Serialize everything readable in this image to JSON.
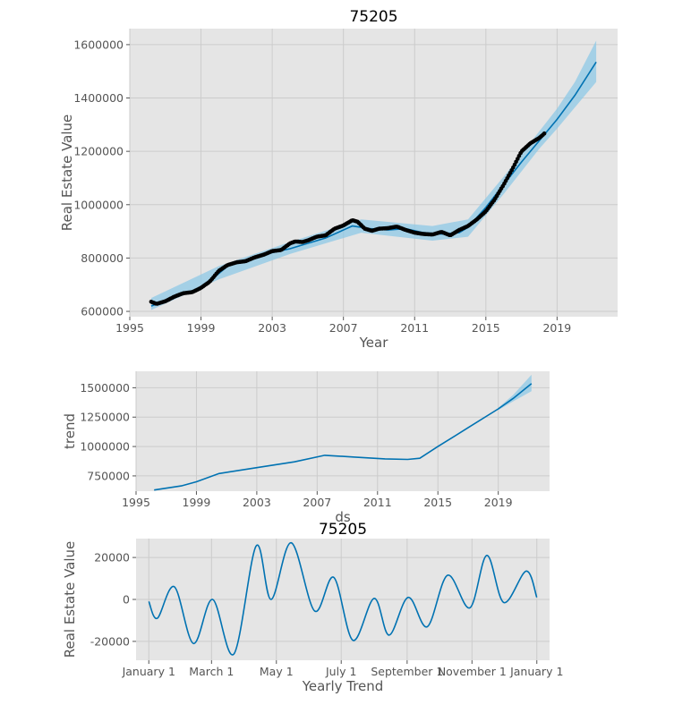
{
  "chart_data": [
    {
      "type": "line",
      "title": "75205",
      "xlabel": "Year",
      "ylabel": "Real Estate Value",
      "xlim": [
        1995,
        2022.4
      ],
      "ylim": [
        580000,
        1660000
      ],
      "x_ticks": [
        1995,
        1999,
        2003,
        2007,
        2011,
        2015,
        2019
      ],
      "y_ticks": [
        600000,
        800000,
        1000000,
        1200000,
        1400000,
        1600000
      ],
      "grid": true,
      "series": [
        {
          "role": "forecast",
          "x": [
            1996.2,
            1997.0,
            1998.0,
            1999.0,
            1999.7,
            2000.5,
            2001.5,
            2003.0,
            2004.0,
            2005.0,
            2006.0,
            2007.5,
            2008.5,
            2009.5,
            2010.5,
            2011.5,
            2012.5,
            2013.5,
            2014.0,
            2015.0,
            2016.0,
            2017.0,
            2018.0,
            2019.0,
            2020.0,
            2021.2
          ],
          "y": [
            620000,
            640000,
            665000,
            690000,
            725000,
            770000,
            790000,
            820000,
            835000,
            855000,
            875000,
            920000,
            910000,
            905000,
            910000,
            895000,
            890000,
            895000,
            915000,
            990000,
            1075000,
            1160000,
            1240000,
            1320000,
            1410000,
            1535000
          ]
        },
        {
          "role": "uncertainty_upper",
          "x": [
            1996.2,
            2000.0,
            2004.0,
            2008.0,
            2012.0,
            2014.0,
            2016.0,
            2018.0,
            2019.0,
            2020.0,
            2021.2
          ],
          "y": [
            650000,
            770000,
            860000,
            945000,
            920000,
            945000,
            1105000,
            1275000,
            1360000,
            1460000,
            1615000
          ]
        },
        {
          "role": "uncertainty_lower",
          "x": [
            1996.2,
            2000.0,
            2004.0,
            2008.0,
            2012.0,
            2014.0,
            2016.0,
            2018.0,
            2019.0,
            2020.0,
            2021.2
          ],
          "y": [
            605000,
            720000,
            815000,
            895000,
            865000,
            880000,
            1040000,
            1210000,
            1285000,
            1365000,
            1460000
          ]
        },
        {
          "role": "observed",
          "x": [
            1996.2,
            1996.5,
            1997.0,
            1997.5,
            1998.0,
            1998.5,
            1999.0,
            1999.5,
            2000.0,
            2000.5,
            2001.0,
            2001.5,
            2002.0,
            2002.5,
            2003.0,
            2003.5,
            2004.0,
            2004.3,
            2004.7,
            2005.0,
            2005.5,
            2006.0,
            2006.5,
            2007.0,
            2007.5,
            2007.8,
            2008.2,
            2008.6,
            2009.0,
            2009.5,
            2010.0,
            2010.5,
            2011.0,
            2011.5,
            2012.0,
            2012.5,
            2013.0,
            2013.5,
            2014.0,
            2014.5,
            2015.0,
            2015.5,
            2016.0,
            2016.5,
            2017.0,
            2017.5,
            2018.0,
            2018.3
          ],
          "y": [
            636000,
            628000,
            638000,
            655000,
            668000,
            672000,
            688000,
            712000,
            752000,
            774000,
            784000,
            788000,
            802000,
            812000,
            826000,
            830000,
            855000,
            862000,
            860000,
            866000,
            880000,
            885000,
            910000,
            922000,
            942000,
            936000,
            910000,
            902000,
            910000,
            912000,
            918000,
            905000,
            895000,
            890000,
            888000,
            898000,
            885000,
            905000,
            920000,
            945000,
            975000,
            1020000,
            1075000,
            1135000,
            1200000,
            1230000,
            1250000,
            1268000
          ]
        }
      ]
    },
    {
      "type": "line",
      "title": "",
      "xlabel": "ds",
      "ylabel": "trend",
      "xlim": [
        1995,
        2022.4
      ],
      "ylim": [
        620000,
        1640000
      ],
      "x_ticks": [
        1995,
        1999,
        2003,
        2007,
        2011,
        2015,
        2019
      ],
      "y_ticks": [
        750000,
        1000000,
        1250000,
        1500000
      ],
      "grid": true,
      "series": [
        {
          "role": "trend",
          "x": [
            1996.2,
            1998.0,
            1999.0,
            2000.5,
            2003.0,
            2005.5,
            2007.5,
            2009.5,
            2011.5,
            2013.0,
            2013.8,
            2015.0,
            2017.0,
            2019.0,
            2020.0,
            2021.2
          ],
          "y": [
            630000,
            665000,
            700000,
            770000,
            820000,
            870000,
            925000,
            910000,
            895000,
            890000,
            900000,
            1000000,
            1160000,
            1320000,
            1410000,
            1535000
          ]
        },
        {
          "role": "uncertainty_upper",
          "x": [
            2019.0,
            2020.0,
            2021.2
          ],
          "y": [
            1330000,
            1440000,
            1610000
          ]
        },
        {
          "role": "uncertainty_lower",
          "x": [
            2019.0,
            2020.0,
            2021.2
          ],
          "y": [
            1310000,
            1385000,
            1470000
          ]
        }
      ]
    },
    {
      "type": "line",
      "title": "75205",
      "xlabel": "Yearly Trend",
      "ylabel": "Real Estate Value",
      "xlim": [
        -12,
        377
      ],
      "ylim": [
        -29000,
        29000
      ],
      "x_ticks": [
        0,
        59,
        120,
        181,
        243,
        304,
        365
      ],
      "x_tick_labels": [
        "January 1",
        "March 1",
        "May 1",
        "July 1",
        "September 1",
        "November 1",
        "January 1"
      ],
      "y_ticks": [
        -20000,
        0,
        20000
      ],
      "grid": true,
      "series": [
        {
          "role": "yearly",
          "x": [
            0,
            8,
            24,
            42,
            60,
            80,
            101,
            115,
            134,
            156,
            174,
            192,
            212,
            226,
            244,
            262,
            281,
            302,
            318,
            334,
            355,
            365
          ],
          "y": [
            -1000,
            -9000,
            6000,
            -21000,
            0,
            -26000,
            25500,
            0,
            27000,
            -5500,
            10500,
            -19500,
            500,
            -17000,
            1000,
            -13000,
            11500,
            -4000,
            21000,
            -1500,
            13500,
            1000
          ]
        }
      ]
    }
  ]
}
